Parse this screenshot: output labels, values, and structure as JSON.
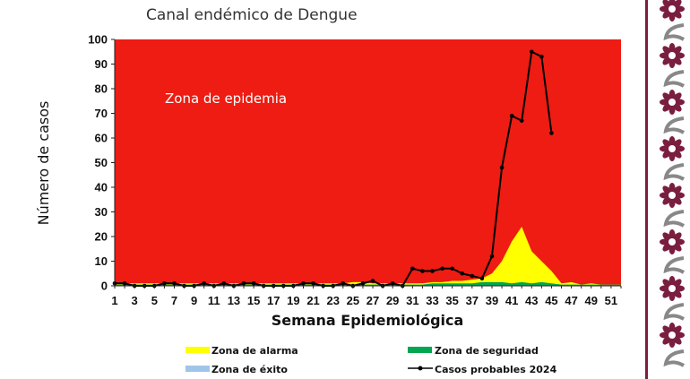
{
  "colors": {
    "epidemia": "#ee1c12",
    "alarma": "#ffff00",
    "seguridad": "#00a650",
    "exito": "#9fc5e8",
    "casos": "#000000",
    "border": "#7a1e3f"
  },
  "chart_data": {
    "type": "area",
    "title": "Canal endémico de Dengue",
    "xlabel": "Semana Epidemiológica",
    "ylabel": "Número de casos",
    "ylim": [
      0,
      100
    ],
    "yticks": [
      0,
      10,
      20,
      30,
      40,
      50,
      60,
      70,
      80,
      90,
      100
    ],
    "xlim": [
      1,
      52
    ],
    "xticks": [
      1,
      3,
      5,
      7,
      9,
      11,
      13,
      15,
      17,
      19,
      21,
      23,
      25,
      27,
      29,
      31,
      33,
      35,
      37,
      39,
      41,
      43,
      45,
      47,
      49,
      51
    ],
    "annotation": "Zona de epidemia",
    "grid": false,
    "legend_position": "bottom",
    "weeks": [
      1,
      2,
      3,
      4,
      5,
      6,
      7,
      8,
      9,
      10,
      11,
      12,
      13,
      14,
      15,
      16,
      17,
      18,
      19,
      20,
      21,
      22,
      23,
      24,
      25,
      26,
      27,
      28,
      29,
      30,
      31,
      32,
      33,
      34,
      35,
      36,
      37,
      38,
      39,
      40,
      41,
      42,
      43,
      44,
      45,
      46,
      47,
      48,
      49,
      50,
      51,
      52
    ],
    "series": [
      {
        "name": "Zona de seguridad",
        "values": [
          0.5,
          0.5,
          0.5,
          0.5,
          0.5,
          0.5,
          0.5,
          0.5,
          0.5,
          0.5,
          0.5,
          0.5,
          0.5,
          0.5,
          0.5,
          0.5,
          0.5,
          0.5,
          0.5,
          0.5,
          0.5,
          0.5,
          0.5,
          0.5,
          0.5,
          0.5,
          0.5,
          0.5,
          0.5,
          0.5,
          0.5,
          0.5,
          1,
          1,
          1,
          1,
          1,
          1.5,
          1.5,
          1.5,
          1,
          1.5,
          1,
          1.5,
          1,
          0.5,
          0.5,
          0.5,
          0.5,
          0.5,
          0.5,
          0.5
        ]
      },
      {
        "name": "Zona de alarma",
        "values": [
          1,
          1,
          1,
          1,
          1,
          1,
          1,
          1,
          1,
          1,
          1,
          1,
          1,
          1,
          1,
          1,
          1,
          1,
          1,
          1,
          1,
          1,
          1,
          1,
          1.5,
          1.5,
          1,
          1,
          1,
          1,
          1,
          1,
          1.5,
          1.5,
          2,
          2,
          2.5,
          3,
          5,
          10,
          18,
          24,
          14,
          10,
          6,
          1,
          1.5,
          0.5,
          1,
          0.5,
          0.5,
          0.5
        ]
      },
      {
        "name": "Zona de éxito",
        "values": [
          0,
          0,
          0,
          0,
          0,
          0,
          0,
          0,
          0,
          0,
          0,
          0,
          0,
          0,
          0,
          0,
          0,
          0,
          0,
          0,
          0,
          0,
          0,
          0,
          0,
          0,
          0,
          0,
          0,
          0,
          0,
          0,
          0,
          0,
          0,
          0,
          0,
          0,
          0,
          0,
          0,
          0,
          0,
          0,
          0,
          0,
          0,
          0,
          0,
          0,
          0,
          0
        ]
      },
      {
        "name": "Casos probables 2024",
        "weeks": [
          1,
          2,
          3,
          4,
          5,
          6,
          7,
          8,
          9,
          10,
          11,
          12,
          13,
          14,
          15,
          16,
          17,
          18,
          19,
          20,
          21,
          22,
          23,
          24,
          25,
          26,
          27,
          28,
          29,
          30,
          31,
          32,
          33,
          34,
          35,
          36,
          37,
          38,
          39,
          40,
          41,
          42,
          43,
          44,
          45
        ],
        "values": [
          1,
          1,
          0,
          0,
          0,
          1,
          1,
          0,
          0,
          1,
          0,
          1,
          0,
          1,
          1,
          0,
          0,
          0,
          0,
          1,
          1,
          0,
          0,
          1,
          0,
          1,
          2,
          0,
          1,
          0,
          7,
          6,
          6,
          7,
          7,
          5,
          4,
          3,
          12,
          48,
          69,
          67,
          95,
          93,
          62
        ]
      }
    ]
  }
}
